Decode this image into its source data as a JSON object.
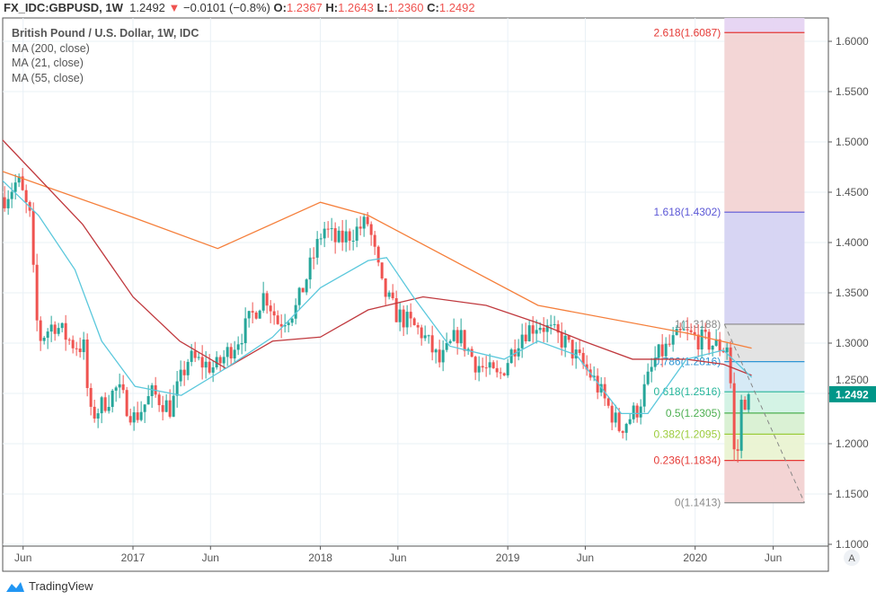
{
  "header": {
    "symbol": "FX_IDC:GBPUSD, 1W",
    "last": "1.2492",
    "change": "−0.0101 (−0.8%)",
    "open_label": "O:",
    "open": "1.2367",
    "high_label": "H:",
    "high": "1.2643",
    "low_label": "L:",
    "low": "1.2360",
    "close_label": "C:",
    "close": "1.2492",
    "direction_icon": "triangle-down-icon"
  },
  "legend": {
    "title": "British Pound / U.S. Dollar, 1W, IDC",
    "studies": [
      "MA (200, close)",
      "MA (21, close)",
      "MA (55, close)"
    ]
  },
  "branding": "TradingView",
  "auto_scale_button": "A",
  "chart_data": {
    "type": "candlestick",
    "title": "British Pound / U.S. Dollar, 1W, IDC",
    "ylim": [
      1.1,
      1.62
    ],
    "yticks": [
      "1.1000",
      "1.1500",
      "1.2000",
      "1.2500",
      "1.3000",
      "1.3500",
      "1.4000",
      "1.4500",
      "1.5000",
      "1.5500",
      "1.6000"
    ],
    "ytick_values": [
      1.1,
      1.15,
      1.2,
      1.25,
      1.3,
      1.35,
      1.4,
      1.45,
      1.5,
      1.55,
      1.6
    ],
    "xlim": [
      "2016-04-20",
      "2020-08-10"
    ],
    "xticks": [
      {
        "label": "Jun",
        "date": "2016-06-01"
      },
      {
        "label": "2017",
        "date": "2017-01-01"
      },
      {
        "label": "Jun",
        "date": "2017-06-01"
      },
      {
        "label": "2018",
        "date": "2018-01-01"
      },
      {
        "label": "Jun",
        "date": "2018-06-01"
      },
      {
        "label": "2019",
        "date": "2019-01-01"
      },
      {
        "label": "Jun",
        "date": "2019-06-01"
      },
      {
        "label": "2020",
        "date": "2020-01-01"
      },
      {
        "label": "Jun",
        "date": "2020-06-01"
      }
    ],
    "grid": true,
    "colors": {
      "up": "#26a69a",
      "down": "#ef5350",
      "ma200": "#f57f3b",
      "ma21": "#5bc8dc",
      "ma55": "#c0393e"
    },
    "price_path": [
      [
        "2016-04-26",
        1.445
      ],
      [
        "2016-05-22",
        1.462
      ],
      [
        "2016-06-17",
        1.42
      ],
      [
        "2016-06-24",
        1.33
      ],
      [
        "2016-07-05",
        1.305
      ],
      [
        "2016-07-31",
        1.32
      ],
      [
        "2016-09-04",
        1.3
      ],
      [
        "2016-09-30",
        1.295
      ],
      [
        "2016-10-07",
        1.225
      ],
      [
        "2016-10-27",
        1.235
      ],
      [
        "2016-12-01",
        1.255
      ],
      [
        "2017-01-04",
        1.225
      ],
      [
        "2017-02-08",
        1.25
      ],
      [
        "2017-03-15",
        1.235
      ],
      [
        "2017-04-19",
        1.285
      ],
      [
        "2017-06-11",
        1.275
      ],
      [
        "2017-08-02",
        1.31
      ],
      [
        "2017-09-15",
        1.35
      ],
      [
        "2017-10-11",
        1.32
      ],
      [
        "2017-11-15",
        1.335
      ],
      [
        "2018-01-07",
        1.415
      ],
      [
        "2018-02-02",
        1.4
      ],
      [
        "2018-04-04",
        1.42
      ],
      [
        "2018-05-01",
        1.355
      ],
      [
        "2018-05-27",
        1.33
      ],
      [
        "2018-07-18",
        1.31
      ],
      [
        "2018-08-22",
        1.28
      ],
      [
        "2018-09-26",
        1.31
      ],
      [
        "2018-10-31",
        1.28
      ],
      [
        "2018-12-14",
        1.265
      ],
      [
        "2019-01-27",
        1.31
      ],
      [
        "2019-03-03",
        1.32
      ],
      [
        "2019-04-24",
        1.3
      ],
      [
        "2019-06-16",
        1.265
      ],
      [
        "2019-08-07",
        1.215
      ],
      [
        "2019-09-11",
        1.235
      ],
      [
        "2019-10-16",
        1.285
      ],
      [
        "2019-12-08",
        1.31
      ],
      [
        "2020-01-29",
        1.3
      ],
      [
        "2020-02-25",
        1.295
      ],
      [
        "2020-03-06",
        1.3
      ],
      [
        "2020-03-13",
        1.23
      ],
      [
        "2020-03-20",
        1.163
      ],
      [
        "2020-03-30",
        1.24
      ],
      [
        "2020-04-10",
        1.245
      ],
      [
        "2020-04-20",
        1.2492
      ]
    ],
    "ma200": [
      [
        "2016-04-20",
        1.471
      ],
      [
        "2017-01-01",
        1.425
      ],
      [
        "2017-06-15",
        1.394
      ],
      [
        "2018-01-01",
        1.44
      ],
      [
        "2018-04-04",
        1.427
      ],
      [
        "2019-03-01",
        1.3375
      ],
      [
        "2019-12-15",
        1.31
      ],
      [
        "2020-04-20",
        1.295
      ]
    ],
    "ma55": [
      [
        "2016-04-20",
        1.503
      ],
      [
        "2016-09-25",
        1.418
      ],
      [
        "2017-01-01",
        1.346
      ],
      [
        "2017-04-02",
        1.302
      ],
      [
        "2017-07-01",
        1.275
      ],
      [
        "2017-09-30",
        1.302
      ],
      [
        "2018-01-01",
        1.306
      ],
      [
        "2018-04-04",
        1.333
      ],
      [
        "2018-07-20",
        1.346
      ],
      [
        "2018-11-20",
        1.3375
      ],
      [
        "2019-03-01",
        1.32
      ],
      [
        "2019-05-28",
        1.302
      ],
      [
        "2019-09-01",
        1.284
      ],
      [
        "2019-12-15",
        1.284
      ],
      [
        "2020-02-25",
        1.279
      ],
      [
        "2020-04-20",
        1.268
      ]
    ],
    "ma21": [
      [
        "2016-04-20",
        1.4625
      ],
      [
        "2016-07-01",
        1.427
      ],
      [
        "2016-09-10",
        1.373
      ],
      [
        "2016-11-01",
        1.302
      ],
      [
        "2017-01-05",
        1.257
      ],
      [
        "2017-04-05",
        1.248
      ],
      [
        "2017-07-01",
        1.275
      ],
      [
        "2017-09-30",
        1.306
      ],
      [
        "2018-01-01",
        1.355
      ],
      [
        "2018-04-04",
        1.382
      ],
      [
        "2018-05-10",
        1.385
      ],
      [
        "2018-07-01",
        1.346
      ],
      [
        "2018-09-10",
        1.297
      ],
      [
        "2018-12-25",
        1.284
      ],
      [
        "2019-03-01",
        1.302
      ],
      [
        "2019-05-15",
        1.288
      ],
      [
        "2019-08-10",
        1.23
      ],
      [
        "2019-10-01",
        1.23
      ],
      [
        "2019-12-15",
        1.284
      ],
      [
        "2020-02-25",
        1.293
      ],
      [
        "2020-04-20",
        1.266
      ]
    ],
    "fibonacci": {
      "start_date": "2020-02-27",
      "end_date": "2020-08-01",
      "trend_from": 1.3188,
      "trend_to": 1.1413,
      "levels": [
        {
          "label": "0(1.1413)",
          "ratio": 0,
          "price": 1.1413,
          "color": "#8a8a8a",
          "fill": "#f2d2d2"
        },
        {
          "label": "0.236(1.1834)",
          "ratio": 0.236,
          "price": 1.1834,
          "color": "#e53935",
          "fill": "#eaf3d2"
        },
        {
          "label": "0.382(1.2095)",
          "ratio": 0.382,
          "price": 1.2095,
          "color": "#9ccc3c",
          "fill": "#d8f0d2"
        },
        {
          "label": "0.5(1.2305)",
          "ratio": 0.5,
          "price": 1.2305,
          "color": "#4caf50",
          "fill": "#d2f2e4"
        },
        {
          "label": "0.618(1.2516)",
          "ratio": 0.618,
          "price": 1.2516,
          "color": "#26b59a",
          "fill": "#d4e9f5"
        },
        {
          "label": "0.786(1.2816)",
          "ratio": 0.786,
          "price": 1.2816,
          "color": "#2e95d3",
          "fill": "#e2e2e2"
        },
        {
          "label": "1(1.3188)",
          "ratio": 1,
          "price": 1.3188,
          "color": "#888888",
          "fill": "#d5d3f2"
        },
        {
          "label": "1.618(1.4302)",
          "ratio": 1.618,
          "price": 1.4302,
          "color": "#5b57d6",
          "fill": "#f2d4d4"
        },
        {
          "label": "2.618(1.6087)",
          "ratio": 2.618,
          "price": 1.6087,
          "color": "#e53935",
          "fill": "#e6d4f2"
        }
      ]
    },
    "last_price": {
      "value": 1.2492,
      "label": "1.2492",
      "color": "#009688"
    }
  }
}
